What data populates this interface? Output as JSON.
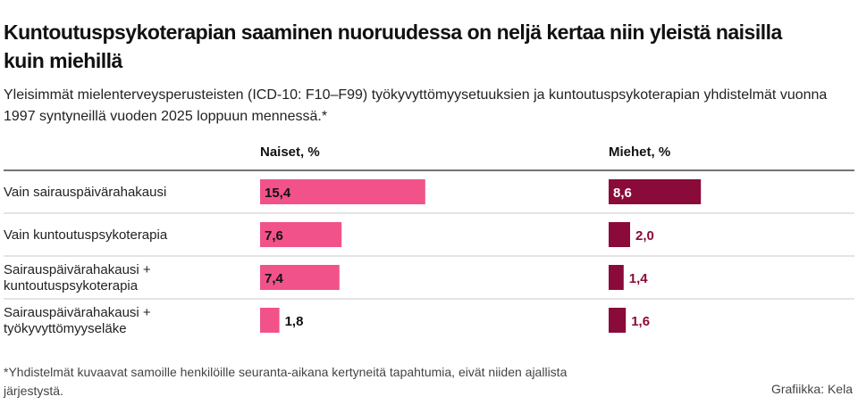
{
  "title": "Kuntoutuspsykoterapian saaminen nuoruudessa on neljä kertaa niin yleistä naisilla kuin miehillä",
  "subtitle": "Yleisimmät mielenterveysperusteisten (ICD-10: F10–F99) työkyvyttömyysetuuksien ja kuntoutuspsykoterapian yhdistelmät vuonna 1997 syntyneillä vuoden 2025 loppuun mennessä.*",
  "footnote": "*Yhdistelmät kuvaavat samoille henkilöille seuranta-aikana kertyneitä tapahtumia, eivät niiden ajallista järjestystä.",
  "credit": "Grafiikka: Kela",
  "colors": {
    "naiset": "#f2528a",
    "miehet": "#8a0a3a",
    "divider": "#222222",
    "rowline": "#c8c8c8"
  },
  "chart_data": {
    "type": "bar",
    "categories": [
      [
        "Vain sairauspäivärahakausi"
      ],
      [
        "Vain kuntoutuspsykoterapia"
      ],
      [
        "Sairauspäivärahakausi +",
        "kuntoutuspsykoterapia"
      ],
      [
        "Sairauspäivärahakausi +",
        "työkyvyttömyyseläke"
      ]
    ],
    "series": [
      {
        "name": "Naiset, %",
        "values": [
          15.4,
          7.6,
          7.4,
          1.8
        ],
        "labels": [
          "15,4",
          "7,6",
          "7,4",
          "1,8"
        ]
      },
      {
        "name": "Miehet, %",
        "values": [
          8.6,
          2.0,
          1.4,
          1.6
        ],
        "labels": [
          "8,6",
          "2,0",
          "1,4",
          "1,6"
        ]
      }
    ]
  }
}
